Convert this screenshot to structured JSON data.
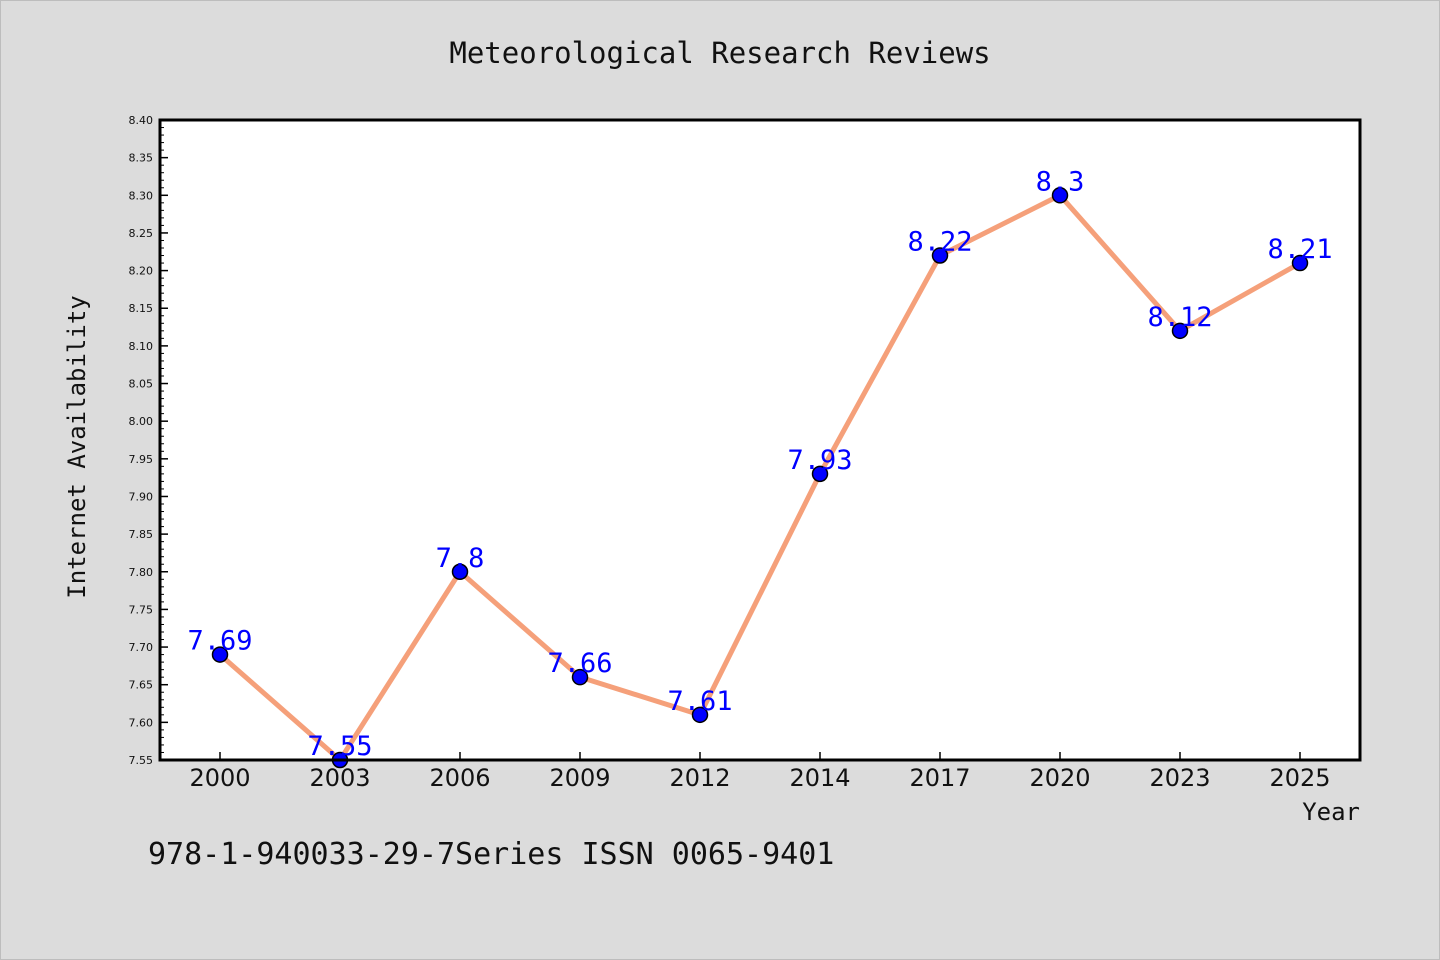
{
  "chart_data": {
    "type": "line",
    "title": "Meteorological Research Reviews",
    "xlabel": "Year",
    "ylabel": "Internet Availability",
    "categories": [
      "2000",
      "2003",
      "2006",
      "2009",
      "2012",
      "2014",
      "2017",
      "2020",
      "2023",
      "2025"
    ],
    "series": [
      {
        "values": [
          7.69,
          7.55,
          7.8,
          7.66,
          7.61,
          7.93,
          8.22,
          8.3,
          8.12,
          8.21
        ],
        "data_labels": [
          "7.69",
          "7.55",
          "7.8",
          "7.66",
          "7.61",
          "7.93",
          "8.22",
          "8.3",
          "8.12",
          "8.21"
        ]
      }
    ],
    "ylim": [
      7.55,
      8.4
    ],
    "yticks": [
      "7.55",
      "7.60",
      "7.65",
      "7.70",
      "7.75",
      "7.80",
      "7.85",
      "7.90",
      "7.95",
      "8.00",
      "8.05",
      "8.10",
      "8.15",
      "8.20",
      "8.25",
      "8.30",
      "8.35",
      "8.40"
    ],
    "grid": false,
    "legend": "none"
  },
  "footer": {
    "text": "978-1-940033-29-7Series ISSN 0065-9401"
  },
  "colors": {
    "line": "#f5a07a",
    "marker": "#0000ff",
    "label": "#0000ff"
  }
}
